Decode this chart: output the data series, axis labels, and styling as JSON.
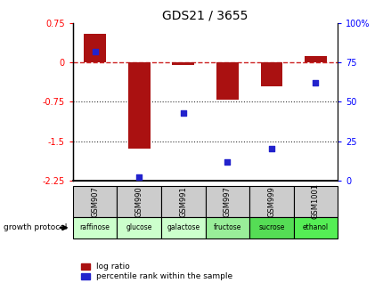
{
  "title": "GDS21 / 3655",
  "samples": [
    "GSM907",
    "GSM990",
    "GSM991",
    "GSM997",
    "GSM999",
    "GSM1001"
  ],
  "protocols": [
    "raffinose",
    "glucose",
    "galactose",
    "fructose",
    "sucrose",
    "ethanol"
  ],
  "log_ratio": [
    0.55,
    -1.65,
    -0.05,
    -0.7,
    -0.45,
    0.13
  ],
  "percentile_rank": [
    82,
    2,
    43,
    12,
    20,
    62
  ],
  "left_ylim": [
    -2.25,
    0.75
  ],
  "left_yticks": [
    0.75,
    0,
    -0.75,
    -1.5,
    -2.25
  ],
  "right_ylim": [
    0,
    100
  ],
  "right_yticks": [
    0,
    25,
    50,
    75,
    100
  ],
  "bar_color": "#aa1111",
  "dot_color": "#2222cc",
  "zero_line_color": "#cc2222",
  "grid_line_color": "#333333",
  "bg_color": "#ffffff",
  "protocol_bg_light": "#ccffcc",
  "protocol_bg_dark": "#55dd55",
  "protocol_colors": [
    "#ccffcc",
    "#ccffcc",
    "#ccffcc",
    "#99ee99",
    "#55dd55",
    "#55ee55"
  ],
  "sample_bg": "#cccccc",
  "legend_log_ratio": "log ratio",
  "legend_percentile": "percentile rank within the sample",
  "growth_protocol_label": "growth protocol",
  "title_fontsize": 10,
  "tick_fontsize": 7,
  "label_fontsize": 7
}
